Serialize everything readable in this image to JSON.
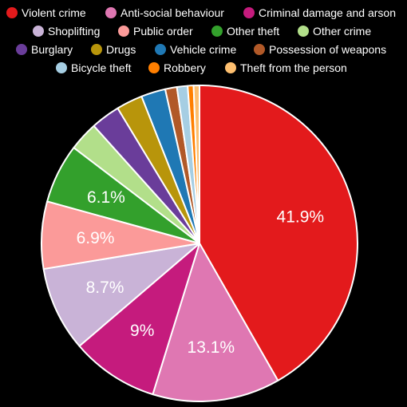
{
  "chart_data": {
    "type": "pie",
    "title": "",
    "legend_placement": "top",
    "slices": [
      {
        "name": "Violent crime",
        "value": 41.9,
        "label": "41.9%",
        "color": "#e31a1c"
      },
      {
        "name": "Anti-social behaviour",
        "value": 13.1,
        "label": "13.1%",
        "color": "#df77b2"
      },
      {
        "name": "Criminal damage and arson",
        "value": 9.0,
        "label": "9%",
        "color": "#c51b7d"
      },
      {
        "name": "Shoplifting",
        "value": 8.7,
        "label": "8.7%",
        "color": "#c9b3d7"
      },
      {
        "name": "Public order",
        "value": 6.9,
        "label": "6.9%",
        "color": "#fb9a99"
      },
      {
        "name": "Other theft",
        "value": 6.1,
        "label": "6.1%",
        "color": "#33a02c"
      },
      {
        "name": "Other crime",
        "value": 3.0,
        "label": "",
        "color": "#b2df8a"
      },
      {
        "name": "Burglary",
        "value": 3.0,
        "label": "",
        "color": "#6a3d9a"
      },
      {
        "name": "Drugs",
        "value": 2.7,
        "label": "",
        "color": "#b8950b"
      },
      {
        "name": "Vehicle crime",
        "value": 2.5,
        "label": "",
        "color": "#1f78b4"
      },
      {
        "name": "Possession of weapons",
        "value": 1.2,
        "label": "",
        "color": "#b15928"
      },
      {
        "name": "Bicycle theft",
        "value": 1.1,
        "label": "",
        "color": "#a6cee3"
      },
      {
        "name": "Robbery",
        "value": 0.6,
        "label": "",
        "color": "#ff7f00"
      },
      {
        "name": "Theft from the person",
        "value": 0.6,
        "label": "",
        "color": "#fdbf6f"
      }
    ]
  }
}
